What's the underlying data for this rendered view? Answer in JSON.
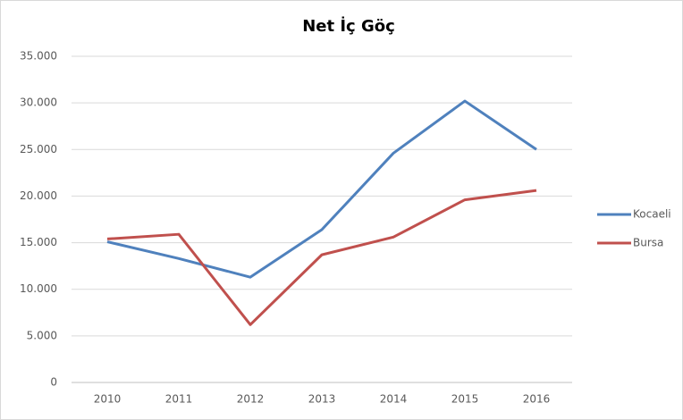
{
  "chart_data": {
    "type": "line",
    "title": "Net İç Göç",
    "categories": [
      "2010",
      "2011",
      "2012",
      "2013",
      "2014",
      "2015",
      "2016"
    ],
    "series": [
      {
        "name": "Kocaeli",
        "color": "#4f81bd",
        "values": [
          15100,
          13300,
          11300,
          16400,
          24600,
          30200,
          25000
        ]
      },
      {
        "name": "Bursa",
        "color": "#c0504d",
        "values": [
          15400,
          15900,
          6200,
          13700,
          15600,
          19600,
          20600
        ]
      }
    ],
    "ylim": [
      0,
      35000
    ],
    "yticks": [
      0,
      {
        "value": 5000,
        "label": "5.000"
      },
      {
        "value": 10000,
        "label": "10.000"
      },
      {
        "value": 15000,
        "label": "15.000"
      },
      {
        "value": 20000,
        "label": "20.000"
      },
      {
        "value": 25000,
        "label": "25.000"
      },
      {
        "value": 30000,
        "label": "30.000"
      },
      {
        "value": 35000,
        "label": "35.000"
      }
    ],
    "grid": true,
    "legend": "right"
  }
}
